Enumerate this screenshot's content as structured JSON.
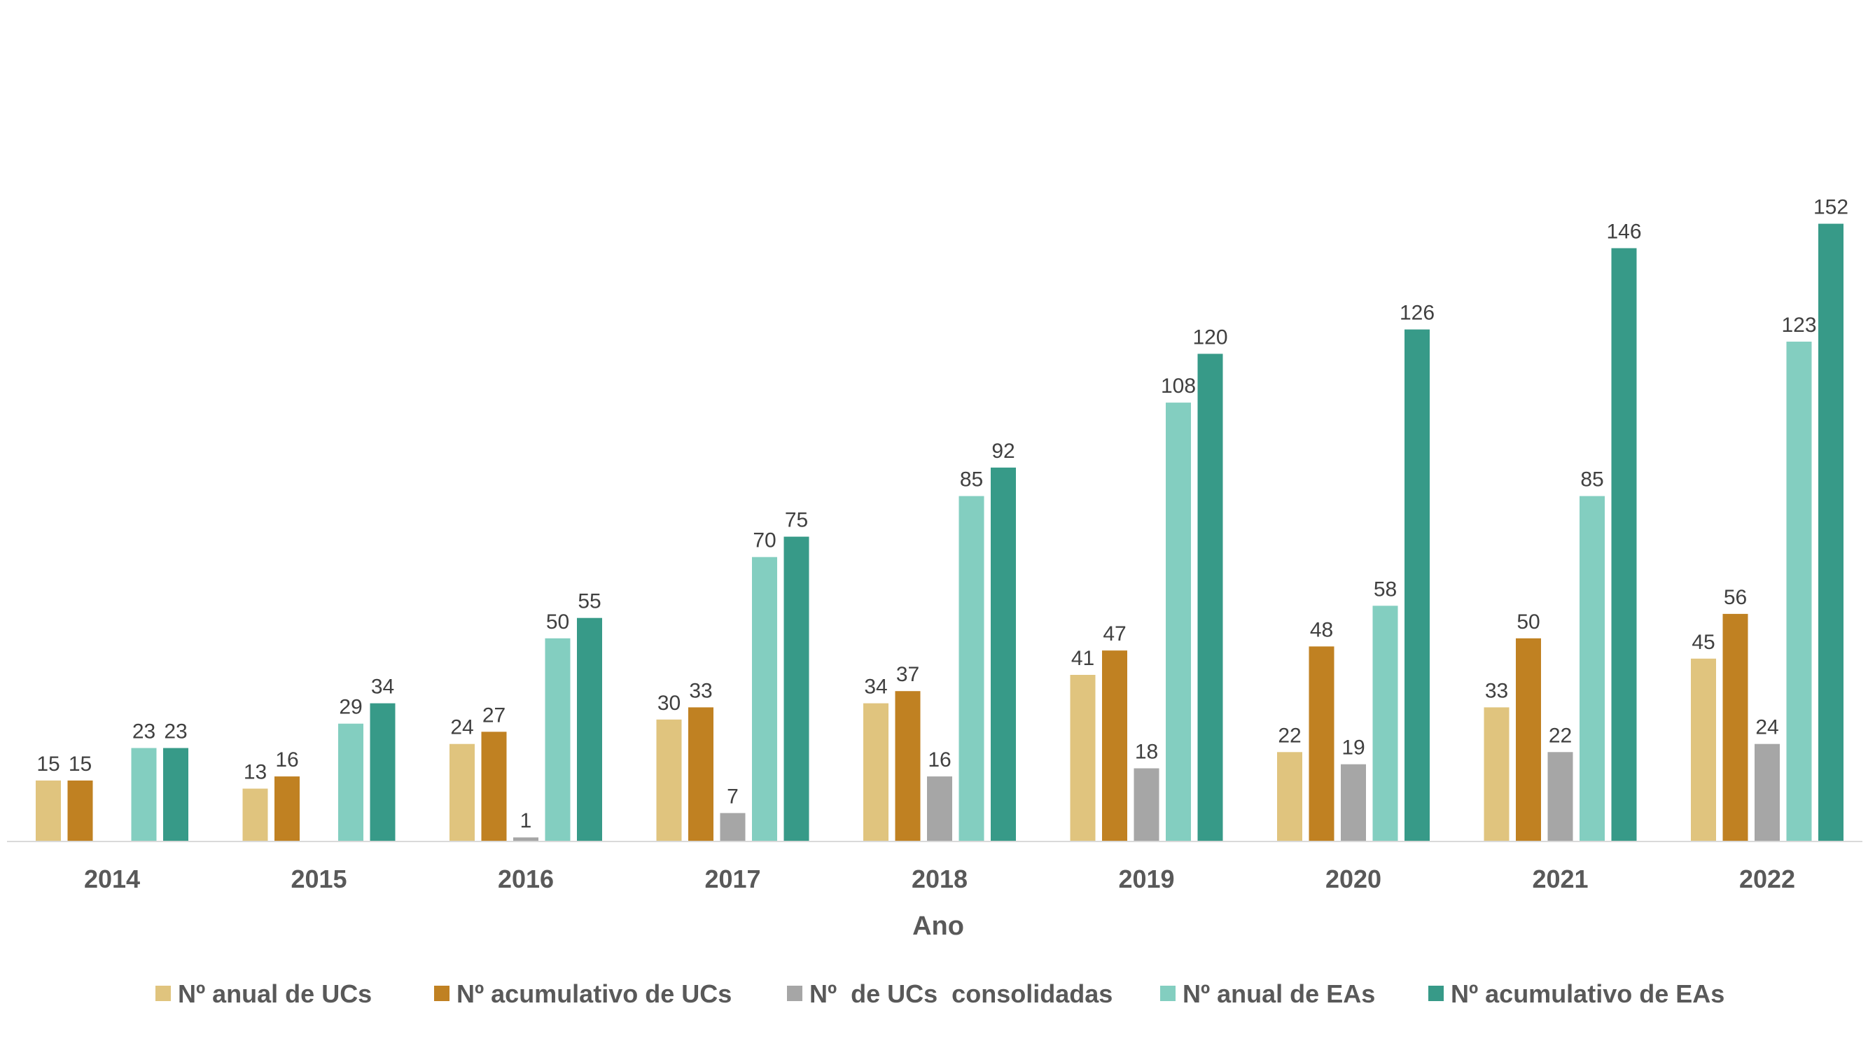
{
  "chart_data": {
    "type": "bar",
    "xlabel": "Ano",
    "ylabel": "",
    "ylim": [
      0,
      160
    ],
    "grid": false,
    "legend_position": "bottom",
    "categories": [
      "2014",
      "2015",
      "2016",
      "2017",
      "2018",
      "2019",
      "2020",
      "2021",
      "2022"
    ],
    "series": [
      {
        "name": "Nº anual de UCs",
        "color": "#E0C47E",
        "values": [
          15,
          13,
          24,
          30,
          34,
          41,
          22,
          33,
          45
        ]
      },
      {
        "name": "Nº acumulativo de UCs",
        "color": "#C08122",
        "values": [
          15,
          16,
          27,
          33,
          37,
          47,
          48,
          50,
          56
        ]
      },
      {
        "name": "Nº  de UCs  consolidadas",
        "color": "#A6A6A6",
        "values": [
          null,
          null,
          1,
          7,
          16,
          18,
          19,
          22,
          24
        ]
      },
      {
        "name": "Nº anual de EAs",
        "color": "#83CEC0",
        "values": [
          23,
          29,
          50,
          70,
          85,
          108,
          58,
          85,
          123
        ]
      },
      {
        "name": "Nº acumulativo de EAs",
        "color": "#379A88",
        "values": [
          23,
          34,
          55,
          75,
          92,
          120,
          126,
          146,
          152
        ]
      }
    ]
  }
}
